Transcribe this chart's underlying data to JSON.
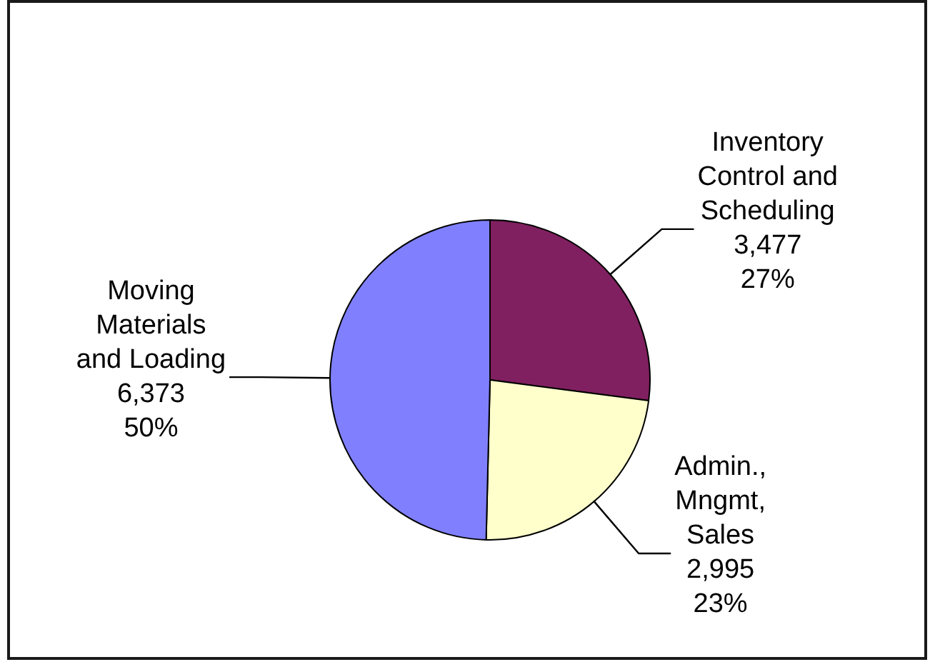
{
  "chart_data": {
    "type": "pie",
    "categories": [
      "Inventory Control and Scheduling",
      "Admin., Mngmt, Sales",
      "Moving Materials and Loading"
    ],
    "values": [
      3477,
      2995,
      6373
    ],
    "colors": [
      "#802060",
      "#ffffcc",
      "#8080ff"
    ],
    "value_labels": [
      "3,477\n27%",
      "2,995\n23%",
      "6,373\n50%"
    ]
  }
}
